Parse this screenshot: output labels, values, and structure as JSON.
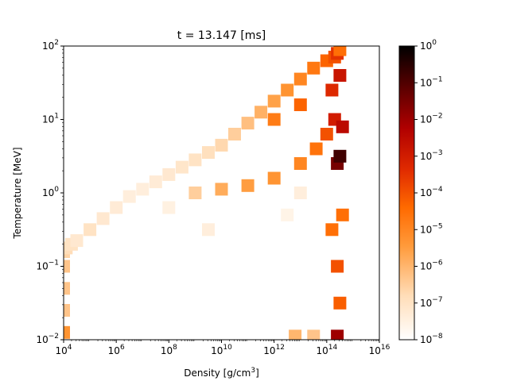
{
  "chart_data": {
    "type": "heatmap",
    "title": "t = 13.147 [ms]",
    "xlabel": "Density [g/cm",
    "xlabel_sup": "3",
    "xlabel_close": "]",
    "ylabel": "Temperature [MeV]",
    "x_scale": "log",
    "y_scale": "log",
    "xlim": [
      10000,
      10000000000000000
    ],
    "ylim": [
      0.01,
      100
    ],
    "x_ticks": [
      {
        "base": "10",
        "exp": "4"
      },
      {
        "base": "10",
        "exp": "6"
      },
      {
        "base": "10",
        "exp": "8"
      },
      {
        "base": "10",
        "exp": "10"
      },
      {
        "base": "10",
        "exp": "12"
      },
      {
        "base": "10",
        "exp": "14"
      },
      {
        "base": "10",
        "exp": "16"
      }
    ],
    "y_ticks": [
      {
        "base": "10",
        "exp": "−2"
      },
      {
        "base": "10",
        "exp": "−1"
      },
      {
        "base": "10",
        "exp": "0"
      },
      {
        "base": "10",
        "exp": "1"
      },
      {
        "base": "10",
        "exp": "2"
      }
    ],
    "colorbar": {
      "scale": "log",
      "range": [
        1e-08,
        1
      ],
      "colormap": "gist_heat_r",
      "ticks": [
        {
          "base": "10",
          "exp": "0"
        },
        {
          "base": "10",
          "exp": "−1"
        },
        {
          "base": "10",
          "exp": "−2"
        },
        {
          "base": "10",
          "exp": "−3"
        },
        {
          "base": "10",
          "exp": "−4"
        },
        {
          "base": "10",
          "exp": "−5"
        },
        {
          "base": "10",
          "exp": "−6"
        },
        {
          "base": "10",
          "exp": "−7"
        },
        {
          "base": "10",
          "exp": "−8"
        }
      ]
    },
    "region_cells": [
      {
        "logx": 4.0,
        "logy": -1.9,
        "level": -5.3
      },
      {
        "logx": 4.0,
        "logy": -1.6,
        "level": -6.3
      },
      {
        "logx": 4.0,
        "logy": -1.3,
        "level": -6.3
      },
      {
        "logx": 4.0,
        "logy": -1.0,
        "level": -6.3
      },
      {
        "logx": 4.0,
        "logy": -0.8,
        "level": -6.6
      },
      {
        "logx": 4.1,
        "logy": -0.75,
        "level": -6.8
      },
      {
        "logx": 4.3,
        "logy": -0.7,
        "level": -7.0
      },
      {
        "logx": 4.5,
        "logy": -0.65,
        "level": -7.2
      },
      {
        "logx": 5.0,
        "logy": -0.5,
        "level": -7.0
      },
      {
        "logx": 5.5,
        "logy": -0.35,
        "level": -7.2
      },
      {
        "logx": 6.0,
        "logy": -0.2,
        "level": -7.3
      },
      {
        "logx": 6.5,
        "logy": -0.05,
        "level": -7.4
      },
      {
        "logx": 7.0,
        "logy": 0.05,
        "level": -7.4
      },
      {
        "logx": 7.5,
        "logy": 0.15,
        "level": -7.3
      },
      {
        "logx": 8.0,
        "logy": 0.25,
        "level": -7.2
      },
      {
        "logx": 8.5,
        "logy": 0.35,
        "level": -7.1
      },
      {
        "logx": 9.0,
        "logy": 0.45,
        "level": -7.0
      },
      {
        "logx": 9.5,
        "logy": 0.55,
        "level": -6.9
      },
      {
        "logx": 10.0,
        "logy": 0.65,
        "level": -6.7
      },
      {
        "logx": 10.5,
        "logy": 0.8,
        "level": -6.5
      },
      {
        "logx": 11.0,
        "logy": 0.95,
        "level": -6.2
      },
      {
        "logx": 11.5,
        "logy": 1.1,
        "level": -5.9
      },
      {
        "logx": 12.0,
        "logy": 1.25,
        "level": -5.6
      },
      {
        "logx": 12.5,
        "logy": 1.4,
        "level": -5.3
      },
      {
        "logx": 13.0,
        "logy": 1.55,
        "level": -5.0
      },
      {
        "logx": 13.5,
        "logy": 1.7,
        "level": -4.7
      },
      {
        "logx": 14.0,
        "logy": 1.8,
        "level": -4.3
      },
      {
        "logx": 14.3,
        "logy": 1.85,
        "level": -4.0
      },
      {
        "logx": 14.4,
        "logy": 1.9,
        "level": -3.5
      },
      {
        "logx": 9.0,
        "logy": 0.0,
        "level": -6.5
      },
      {
        "logx": 10.0,
        "logy": 0.05,
        "level": -5.8
      },
      {
        "logx": 11.0,
        "logy": 0.1,
        "level": -5.5
      },
      {
        "logx": 12.0,
        "logy": 0.2,
        "level": -5.3
      },
      {
        "logx": 13.0,
        "logy": 0.4,
        "level": -5.0
      },
      {
        "logx": 13.6,
        "logy": 0.6,
        "level": -4.6
      },
      {
        "logx": 14.0,
        "logy": 0.8,
        "level": -4.0
      },
      {
        "logx": 14.3,
        "logy": 1.0,
        "level": -3.0
      },
      {
        "logx": 14.4,
        "logy": 0.4,
        "level": -1.5
      },
      {
        "logx": 14.5,
        "logy": 0.5,
        "level": -0.8
      },
      {
        "logx": 14.6,
        "logy": 0.9,
        "level": -2.5
      },
      {
        "logx": 12.0,
        "logy": 1.0,
        "level": -4.8
      },
      {
        "logx": 13.0,
        "logy": 1.2,
        "level": -4.3
      },
      {
        "logx": 14.2,
        "logy": 1.4,
        "level": -3.3
      },
      {
        "logx": 14.5,
        "logy": 1.6,
        "level": -2.8
      },
      {
        "logx": 14.5,
        "logy": 1.95,
        "level": -4.5
      },
      {
        "logx": 14.2,
        "logy": -0.5,
        "level": -4.5
      },
      {
        "logx": 14.4,
        "logy": -1.0,
        "level": -4.0
      },
      {
        "logx": 14.5,
        "logy": -1.5,
        "level": -4.2
      },
      {
        "logx": 14.4,
        "logy": -1.95,
        "level": -2.0
      },
      {
        "logx": 14.6,
        "logy": -0.3,
        "level": -4.5
      },
      {
        "logx": 12.8,
        "logy": -1.95,
        "level": -6.0
      },
      {
        "logx": 13.5,
        "logy": -1.95,
        "level": -6.3
      },
      {
        "logx": 8.0,
        "logy": -0.2,
        "level": -7.5
      },
      {
        "logx": 9.5,
        "logy": -0.5,
        "level": -7.4
      },
      {
        "logx": 12.5,
        "logy": -0.3,
        "level": -7.6
      },
      {
        "logx": 13.0,
        "logy": 0.0,
        "level": -7.4
      }
    ]
  }
}
